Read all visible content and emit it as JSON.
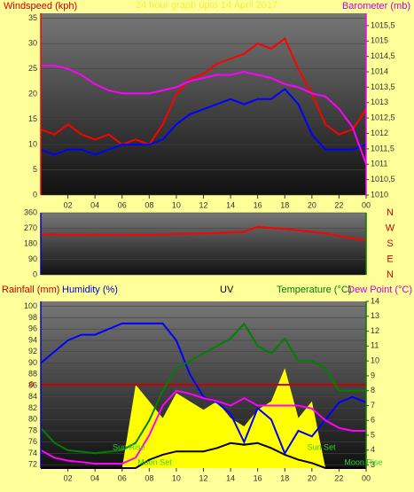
{
  "chart_data": [
    {
      "type": "line",
      "title": "24 hour graph upto 14 April 2017",
      "y_label": "Windspeed (kph)",
      "y2_label": "Barometer (mb)",
      "x": [
        0,
        1,
        2,
        3,
        4,
        5,
        6,
        7,
        8,
        9,
        10,
        11,
        12,
        13,
        14,
        15,
        16,
        17,
        18,
        19,
        20,
        21,
        22,
        23,
        24
      ],
      "xlim": [
        0,
        24
      ],
      "xticks": [
        {
          "value": 2,
          "label": "02"
        },
        {
          "value": 4,
          "label": "04"
        },
        {
          "value": 6,
          "label": "06"
        },
        {
          "value": 8,
          "label": "08"
        },
        10,
        12,
        14,
        16,
        18,
        20,
        22,
        {
          "value": 24,
          "label": "00"
        }
      ],
      "ylim": [
        0,
        36
      ],
      "yticks": [
        0,
        5,
        10,
        15,
        20,
        25,
        30,
        35
      ],
      "y2lim": [
        1010,
        1015.9
      ],
      "y2ticks": [
        1010,
        {
          "value": 1010.5,
          "label": "1010,5"
        },
        1011,
        {
          "value": 1011.5,
          "label": "1011,5"
        },
        1012,
        {
          "value": 1012.5,
          "label": "1012,5"
        },
        1013,
        {
          "value": 1013.5,
          "label": "1013,5"
        },
        1014,
        {
          "value": 1014.5,
          "label": "1014,5"
        },
        1015,
        {
          "value": 1015.5,
          "label": "1015,5"
        }
      ],
      "grid": true,
      "series": [
        {
          "color": "#ff0000",
          "values": [
            13,
            12,
            14,
            12,
            11,
            12,
            10,
            11,
            10,
            14,
            20,
            23,
            24,
            26,
            27,
            28,
            30,
            29,
            31,
            25,
            20,
            14,
            12,
            13,
            17
          ]
        },
        {
          "color": "#0000ff",
          "values": [
            9,
            8,
            9,
            9,
            8,
            9,
            10,
            10,
            10,
            11,
            14,
            16,
            17,
            18,
            19,
            18,
            19,
            19,
            21,
            18,
            12,
            9,
            9,
            9,
            10
          ]
        },
        {
          "color": "#ff00ff",
          "axis": "y2",
          "values": [
            1014.2,
            1014.2,
            1014.1,
            1013.9,
            1013.6,
            1013.4,
            1013.3,
            1013.3,
            1013.3,
            1013.4,
            1013.5,
            1013.7,
            1013.8,
            1013.9,
            1013.9,
            1014,
            1013.9,
            1013.8,
            1013.6,
            1013.5,
            1013.3,
            1013.2,
            1012.8,
            1012.2,
            1011
          ]
        }
      ]
    },
    {
      "type": "line",
      "x": [
        0,
        1,
        2,
        3,
        4,
        5,
        6,
        7,
        8,
        9,
        10,
        11,
        12,
        13,
        14,
        15,
        16,
        17,
        18,
        19,
        20,
        21,
        22,
        23,
        24
      ],
      "xlim": [
        0,
        24
      ],
      "ylim": [
        0,
        360
      ],
      "yticks": [
        0,
        90,
        180,
        270,
        360
      ],
      "grid": true,
      "direction_labels": [
        "N",
        "W",
        "S",
        "E",
        "N"
      ],
      "series": [
        {
          "color": "#ff0000",
          "values": [
            232,
            236,
            230,
            232,
            234,
            232,
            230,
            233,
            232,
            234,
            236,
            238,
            240,
            242,
            246,
            250,
            278,
            272,
            266,
            258,
            250,
            240,
            226,
            212,
            200
          ]
        }
      ]
    },
    {
      "type": "line",
      "rainfall_label": "Rainfall (mm)",
      "humidity_label": "Humidity (%)",
      "uv_label": "UV",
      "temperature_label": "Temperature (°C)",
      "dewpoint_label": "Dew Point (°C)",
      "x": [
        0,
        1,
        2,
        3,
        4,
        5,
        6,
        7,
        8,
        9,
        10,
        11,
        12,
        13,
        14,
        15,
        16,
        17,
        18,
        19,
        20,
        21,
        22,
        23,
        24
      ],
      "xlim": [
        0,
        24
      ],
      "xticks": [
        {
          "value": 2,
          "label": "02"
        },
        {
          "value": 4,
          "label": "04"
        },
        {
          "value": 6,
          "label": "06"
        },
        {
          "value": 8,
          "label": "08"
        },
        10,
        12,
        14,
        16,
        18,
        20,
        22,
        {
          "value": 24,
          "label": "00"
        }
      ],
      "ylim": [
        71.4,
        100.9
      ],
      "yticks": [
        72,
        74,
        76,
        78,
        80,
        82,
        84,
        86,
        88,
        90,
        92,
        94,
        96,
        98,
        100
      ],
      "y2lim": [
        2.8,
        14
      ],
      "y2ticks": [
        3,
        4,
        5,
        6,
        7,
        8,
        9,
        10,
        11,
        12,
        13,
        14
      ],
      "y3lim": [
        -1,
        1
      ],
      "y3ticks": [
        0
      ],
      "y4lim": [
        0,
        10
      ],
      "grid": true,
      "series": [
        {
          "color": "#ffff00",
          "axis": "y4",
          "fill": true,
          "values": [
            0,
            0,
            0,
            0,
            0,
            0,
            0,
            5,
            4,
            3,
            4.5,
            4,
            3.5,
            4,
            3,
            2.5,
            3.5,
            4,
            6,
            3,
            4,
            0,
            0,
            0,
            0
          ]
        },
        {
          "color": "#000000",
          "axis": "y4",
          "values": [
            0,
            0,
            0,
            0,
            0,
            0,
            0,
            0,
            0.5,
            0.8,
            1,
            1,
            1,
            1.2,
            1.5,
            1.4,
            1.5,
            1.2,
            0.8,
            0.5,
            0.3,
            0,
            0,
            0,
            0
          ]
        },
        {
          "color": "#cc0000",
          "axis": "y3",
          "values": [
            0,
            0,
            0,
            0,
            0,
            0,
            0,
            0,
            0,
            0,
            0,
            0,
            0,
            0,
            0,
            0,
            0,
            0,
            0,
            0,
            0,
            0,
            0,
            0,
            0
          ]
        },
        {
          "color": "#0000ff",
          "values": [
            90,
            92,
            94,
            95,
            95,
            96,
            97,
            97,
            97,
            97,
            94,
            88,
            84,
            83,
            81,
            76,
            82,
            80,
            74,
            78,
            77,
            80,
            83,
            84,
            83
          ]
        },
        {
          "color": "#008000",
          "axis": "y2",
          "values": [
            5.5,
            4.5,
            4,
            3.9,
            3.8,
            3.9,
            4,
            4.5,
            6,
            8,
            9.5,
            10,
            10.5,
            11,
            11.5,
            12.5,
            11,
            10.5,
            11.5,
            10,
            10,
            9.5,
            8,
            8,
            8
          ]
        },
        {
          "color": "#ff00ff",
          "axis": "y2",
          "values": [
            4,
            3.5,
            3.3,
            3.2,
            3.1,
            3.1,
            3.1,
            3.5,
            5,
            7,
            8,
            7.8,
            7.5,
            7.3,
            7,
            7.5,
            7,
            7,
            7,
            7,
            6.8,
            6,
            5.5,
            5.3,
            5.3
          ]
        }
      ],
      "annotations": [
        {
          "text": "Sun Rise",
          "x": 6.5
        },
        {
          "text": "Moon Set",
          "x": 8.4
        },
        {
          "text": "Sun Set",
          "x": 20.7
        },
        {
          "text": "Moon Rise",
          "x": 23.8
        }
      ]
    }
  ]
}
